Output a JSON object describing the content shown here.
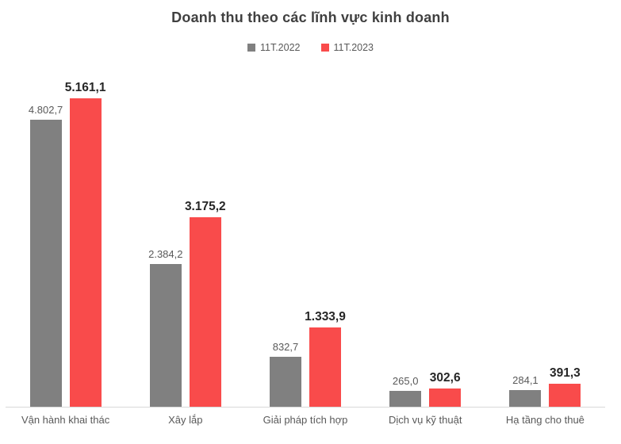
{
  "chart_data": {
    "type": "bar",
    "title": "Doanh thu theo các lĩnh vực kinh doanh",
    "categories": [
      "Vận hành khai thác",
      "Xây lắp",
      "Giải pháp tích hợp",
      "Dịch vụ kỹ thuật",
      "Hạ tầng cho thuê"
    ],
    "series": [
      {
        "name": "11T.2022",
        "color": "#808080",
        "values": [
          4802.7,
          2384.2,
          832.7,
          265.0,
          284.1
        ],
        "labels": [
          "4.802,7",
          "2.384,2",
          "832,7",
          "265,0",
          "284,1"
        ],
        "label_style": "regular"
      },
      {
        "name": "11T.2023",
        "color": "#F94B4B",
        "values": [
          5161.1,
          3175.2,
          1333.9,
          302.6,
          391.3
        ],
        "labels": [
          "5.161,1",
          "3.175,2",
          "1.333,9",
          "302,6",
          "391,3"
        ],
        "label_style": "bold"
      }
    ],
    "ylim": [
      0,
      5640
    ],
    "grid": false,
    "legend_position": "top",
    "value_labels": true,
    "axis_line_color": "#d9d9d9",
    "title_color": "#404040",
    "text_color": "#595959",
    "bold_label_color": "#262626"
  }
}
